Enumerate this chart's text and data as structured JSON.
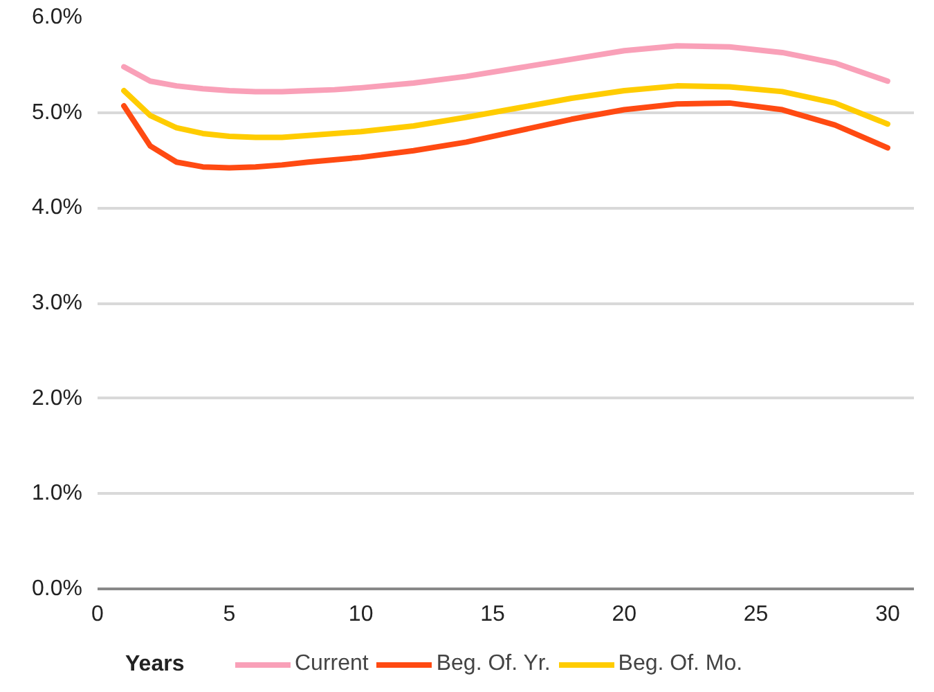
{
  "chart_data": {
    "type": "line",
    "xlabel": "Years",
    "xlim": [
      0,
      31
    ],
    "xticks": [
      0,
      5,
      10,
      15,
      20,
      25,
      30
    ],
    "ylim": [
      0,
      6
    ],
    "yticks": [
      {
        "value": 0,
        "label": "0.0%"
      },
      {
        "value": 1,
        "label": "1.0%"
      },
      {
        "value": 2,
        "label": "2.0%"
      },
      {
        "value": 3,
        "label": "3.0%"
      },
      {
        "value": 4,
        "label": "4.0%"
      },
      {
        "value": 5,
        "label": "5.0%"
      },
      {
        "value": 6,
        "label": "6.0%"
      }
    ],
    "grid": "y",
    "legend": "bottom",
    "marker": "none",
    "line_style": "solid",
    "series": [
      {
        "name": "Current",
        "color": "#f9a0b8",
        "x": [
          1,
          2,
          3,
          4,
          5,
          6,
          7,
          8,
          9,
          10,
          12,
          14,
          16,
          18,
          20,
          22,
          24,
          26,
          28,
          30
        ],
        "values": [
          5.48,
          5.33,
          5.28,
          5.25,
          5.23,
          5.22,
          5.22,
          5.23,
          5.24,
          5.26,
          5.31,
          5.38,
          5.47,
          5.56,
          5.65,
          5.7,
          5.69,
          5.63,
          5.52,
          5.33
        ]
      },
      {
        "name": "Beg. Of. Yr.",
        "color": "#ff4a12",
        "x": [
          1,
          2,
          3,
          4,
          5,
          6,
          7,
          8,
          10,
          12,
          14,
          16,
          18,
          20,
          22,
          24,
          26,
          28,
          30
        ],
        "values": [
          5.07,
          4.65,
          4.48,
          4.43,
          4.42,
          4.43,
          4.45,
          4.48,
          4.53,
          4.6,
          4.69,
          4.81,
          4.93,
          5.03,
          5.09,
          5.1,
          5.03,
          4.87,
          4.63
        ]
      },
      {
        "name": "Beg. Of. Mo.",
        "color": "#ffcc00",
        "x": [
          1,
          2,
          3,
          4,
          5,
          6,
          7,
          8,
          10,
          12,
          14,
          16,
          18,
          20,
          22,
          24,
          26,
          28,
          30
        ],
        "values": [
          5.23,
          4.97,
          4.84,
          4.78,
          4.75,
          4.74,
          4.74,
          4.76,
          4.8,
          4.86,
          4.95,
          5.05,
          5.15,
          5.23,
          5.28,
          5.27,
          5.22,
          5.1,
          4.88
        ]
      }
    ]
  }
}
